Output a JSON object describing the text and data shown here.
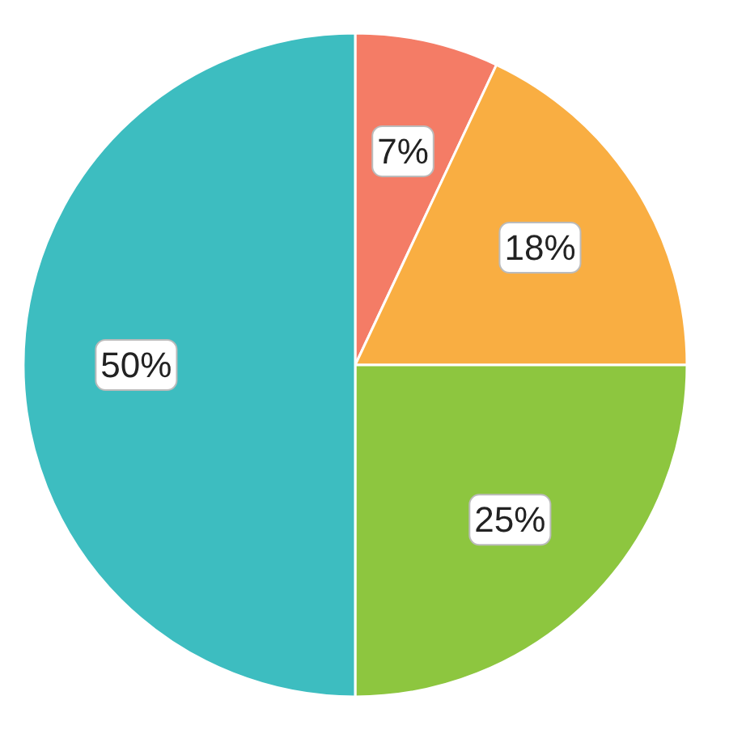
{
  "chart_data": {
    "type": "pie",
    "categories": [
      null,
      null,
      null,
      null
    ],
    "values": [
      7,
      18,
      25,
      50
    ],
    "colors": [
      "#f47c66",
      "#f9ae42",
      "#8dc63f",
      "#3dbdc0"
    ],
    "value_labels": [
      "7%",
      "18%",
      "25%",
      "50%"
    ]
  }
}
